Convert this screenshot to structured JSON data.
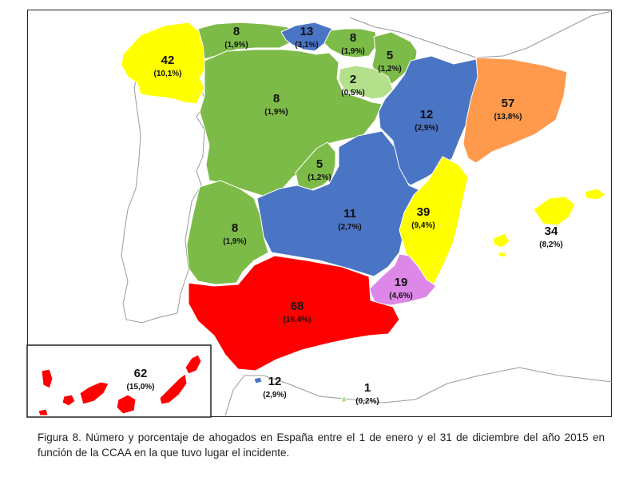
{
  "caption": "Figura 8. Número y porcentaje de ahogados en España entre el 1 de enero y el 31 de diciembre del año 2015 en función de la CCAA en la que tuvo lugar el incidente.",
  "colors": {
    "yellow": "#ffff00",
    "green": "#7dbb48",
    "blue": "#4a74c4",
    "red": "#ff0000",
    "orange": "#ff9a4d",
    "violet": "#dd88e8",
    "lightgreen": "#b4e08c",
    "outline": "#9a9a9a"
  },
  "regions": [
    {
      "name": "Galicia",
      "count": "42",
      "pct": "(10,1%)",
      "color": "yellow"
    },
    {
      "name": "Asturias",
      "count": "8",
      "pct": "(1,9%)",
      "color": "green"
    },
    {
      "name": "Cantabria",
      "count": "13",
      "pct": "(3,1%)",
      "color": "blue"
    },
    {
      "name": "País Vasco",
      "count": "8",
      "pct": "(1,9%)",
      "color": "green"
    },
    {
      "name": "Navarra",
      "count": "5",
      "pct": "(1,2%)",
      "color": "green"
    },
    {
      "name": "La Rioja",
      "count": "2",
      "pct": "(0,5%)",
      "color": "lightgreen"
    },
    {
      "name": "Castilla y León",
      "count": "8",
      "pct": "(1,9%)",
      "color": "green"
    },
    {
      "name": "Aragón",
      "count": "12",
      "pct": "(2,9%)",
      "color": "blue"
    },
    {
      "name": "Cataluña",
      "count": "57",
      "pct": "(13,8%)",
      "color": "orange"
    },
    {
      "name": "Madrid",
      "count": "5",
      "pct": "(1,2%)",
      "color": "green"
    },
    {
      "name": "Castilla-La Mancha",
      "count": "11",
      "pct": "(2,7%)",
      "color": "blue"
    },
    {
      "name": "Comunidad Valenciana",
      "count": "39",
      "pct": "(9,4%)",
      "color": "yellow"
    },
    {
      "name": "Islas Baleares",
      "count": "34",
      "pct": "(8,2%)",
      "color": "yellow"
    },
    {
      "name": "Extremadura",
      "count": "8",
      "pct": "(1,9%)",
      "color": "green"
    },
    {
      "name": "Región de Murcia",
      "count": "19",
      "pct": "(4,6%)",
      "color": "violet"
    },
    {
      "name": "Andalucía",
      "count": "68",
      "pct": "(16,4%)",
      "color": "red"
    },
    {
      "name": "Islas Canarias",
      "count": "62",
      "pct": "(15,0%)",
      "color": "red"
    },
    {
      "name": "Ceuta",
      "count": "12",
      "pct": "(2,9%)",
      "color": "blue"
    },
    {
      "name": "Melilla",
      "count": "1",
      "pct": "(0,2%)",
      "color": "lightgreen"
    }
  ]
}
